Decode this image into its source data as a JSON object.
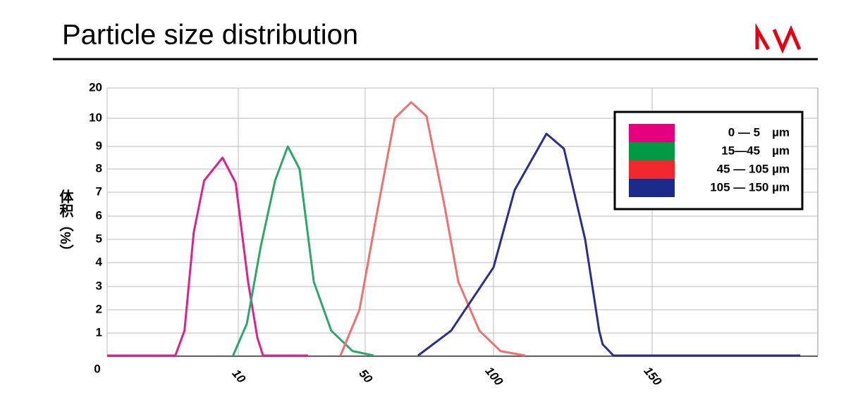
{
  "chart_data": {
    "type": "line",
    "title": "Particle size distribution",
    "ylabel": "体积（%）",
    "xlim": [
      0,
      200
    ],
    "xticks": [
      0,
      10,
      50,
      100,
      150
    ],
    "ylim": [
      0,
      20
    ],
    "yticks": [
      0,
      1,
      2,
      3,
      4,
      5,
      6,
      7,
      8,
      9,
      10,
      20
    ],
    "grid": true,
    "legend": "upper right",
    "series": [
      {
        "name": "0 — 5　µm",
        "color": "#e0208f",
        "legend_color": "#e4007f",
        "x": [
          0,
          5.2,
          5.9,
          6.6,
          7.4,
          8.8,
          9.8,
          13.1,
          16,
          17.8,
          32
        ],
        "values": [
          0,
          0,
          1.1,
          5.3,
          7.5,
          8.5,
          7.4,
          3.2,
          0.8,
          0,
          0
        ]
      },
      {
        "name": "15—45　µm",
        "color": "#2aa86a",
        "legend_color": "#009944",
        "x": [
          9.6,
          12.7,
          17.1,
          21.6,
          25.6,
          29.3,
          33.8,
          39.3,
          46,
          53.3
        ],
        "values": [
          0,
          1.4,
          4.7,
          7.5,
          9.0,
          8.0,
          3.2,
          1.1,
          0.2,
          0
        ]
      },
      {
        "name": "45 — 105 µm",
        "color": "#f07070",
        "legend_color": "#f0282d",
        "x": [
          42.2,
          48.2,
          54.7,
          61.5,
          67.9,
          73.9,
          80.8,
          86.3,
          94.5,
          102.2,
          110
        ],
        "values": [
          0,
          2,
          6.2,
          10,
          15.3,
          10.7,
          6.5,
          3.2,
          1.1,
          0.2,
          0
        ]
      },
      {
        "name": "105 — 150 µm",
        "color": "#2b2f8c",
        "legend_color": "#1c2a8c",
        "x": [
          70.6,
          83.5,
          100,
          106.7,
          116.7,
          122.2,
          128.9,
          133.3,
          134.4,
          137.8,
          194.7
        ],
        "values": [
          0,
          1.1,
          3.8,
          7.1,
          9.45,
          8.9,
          5,
          1.1,
          0.5,
          0,
          0
        ]
      }
    ]
  }
}
